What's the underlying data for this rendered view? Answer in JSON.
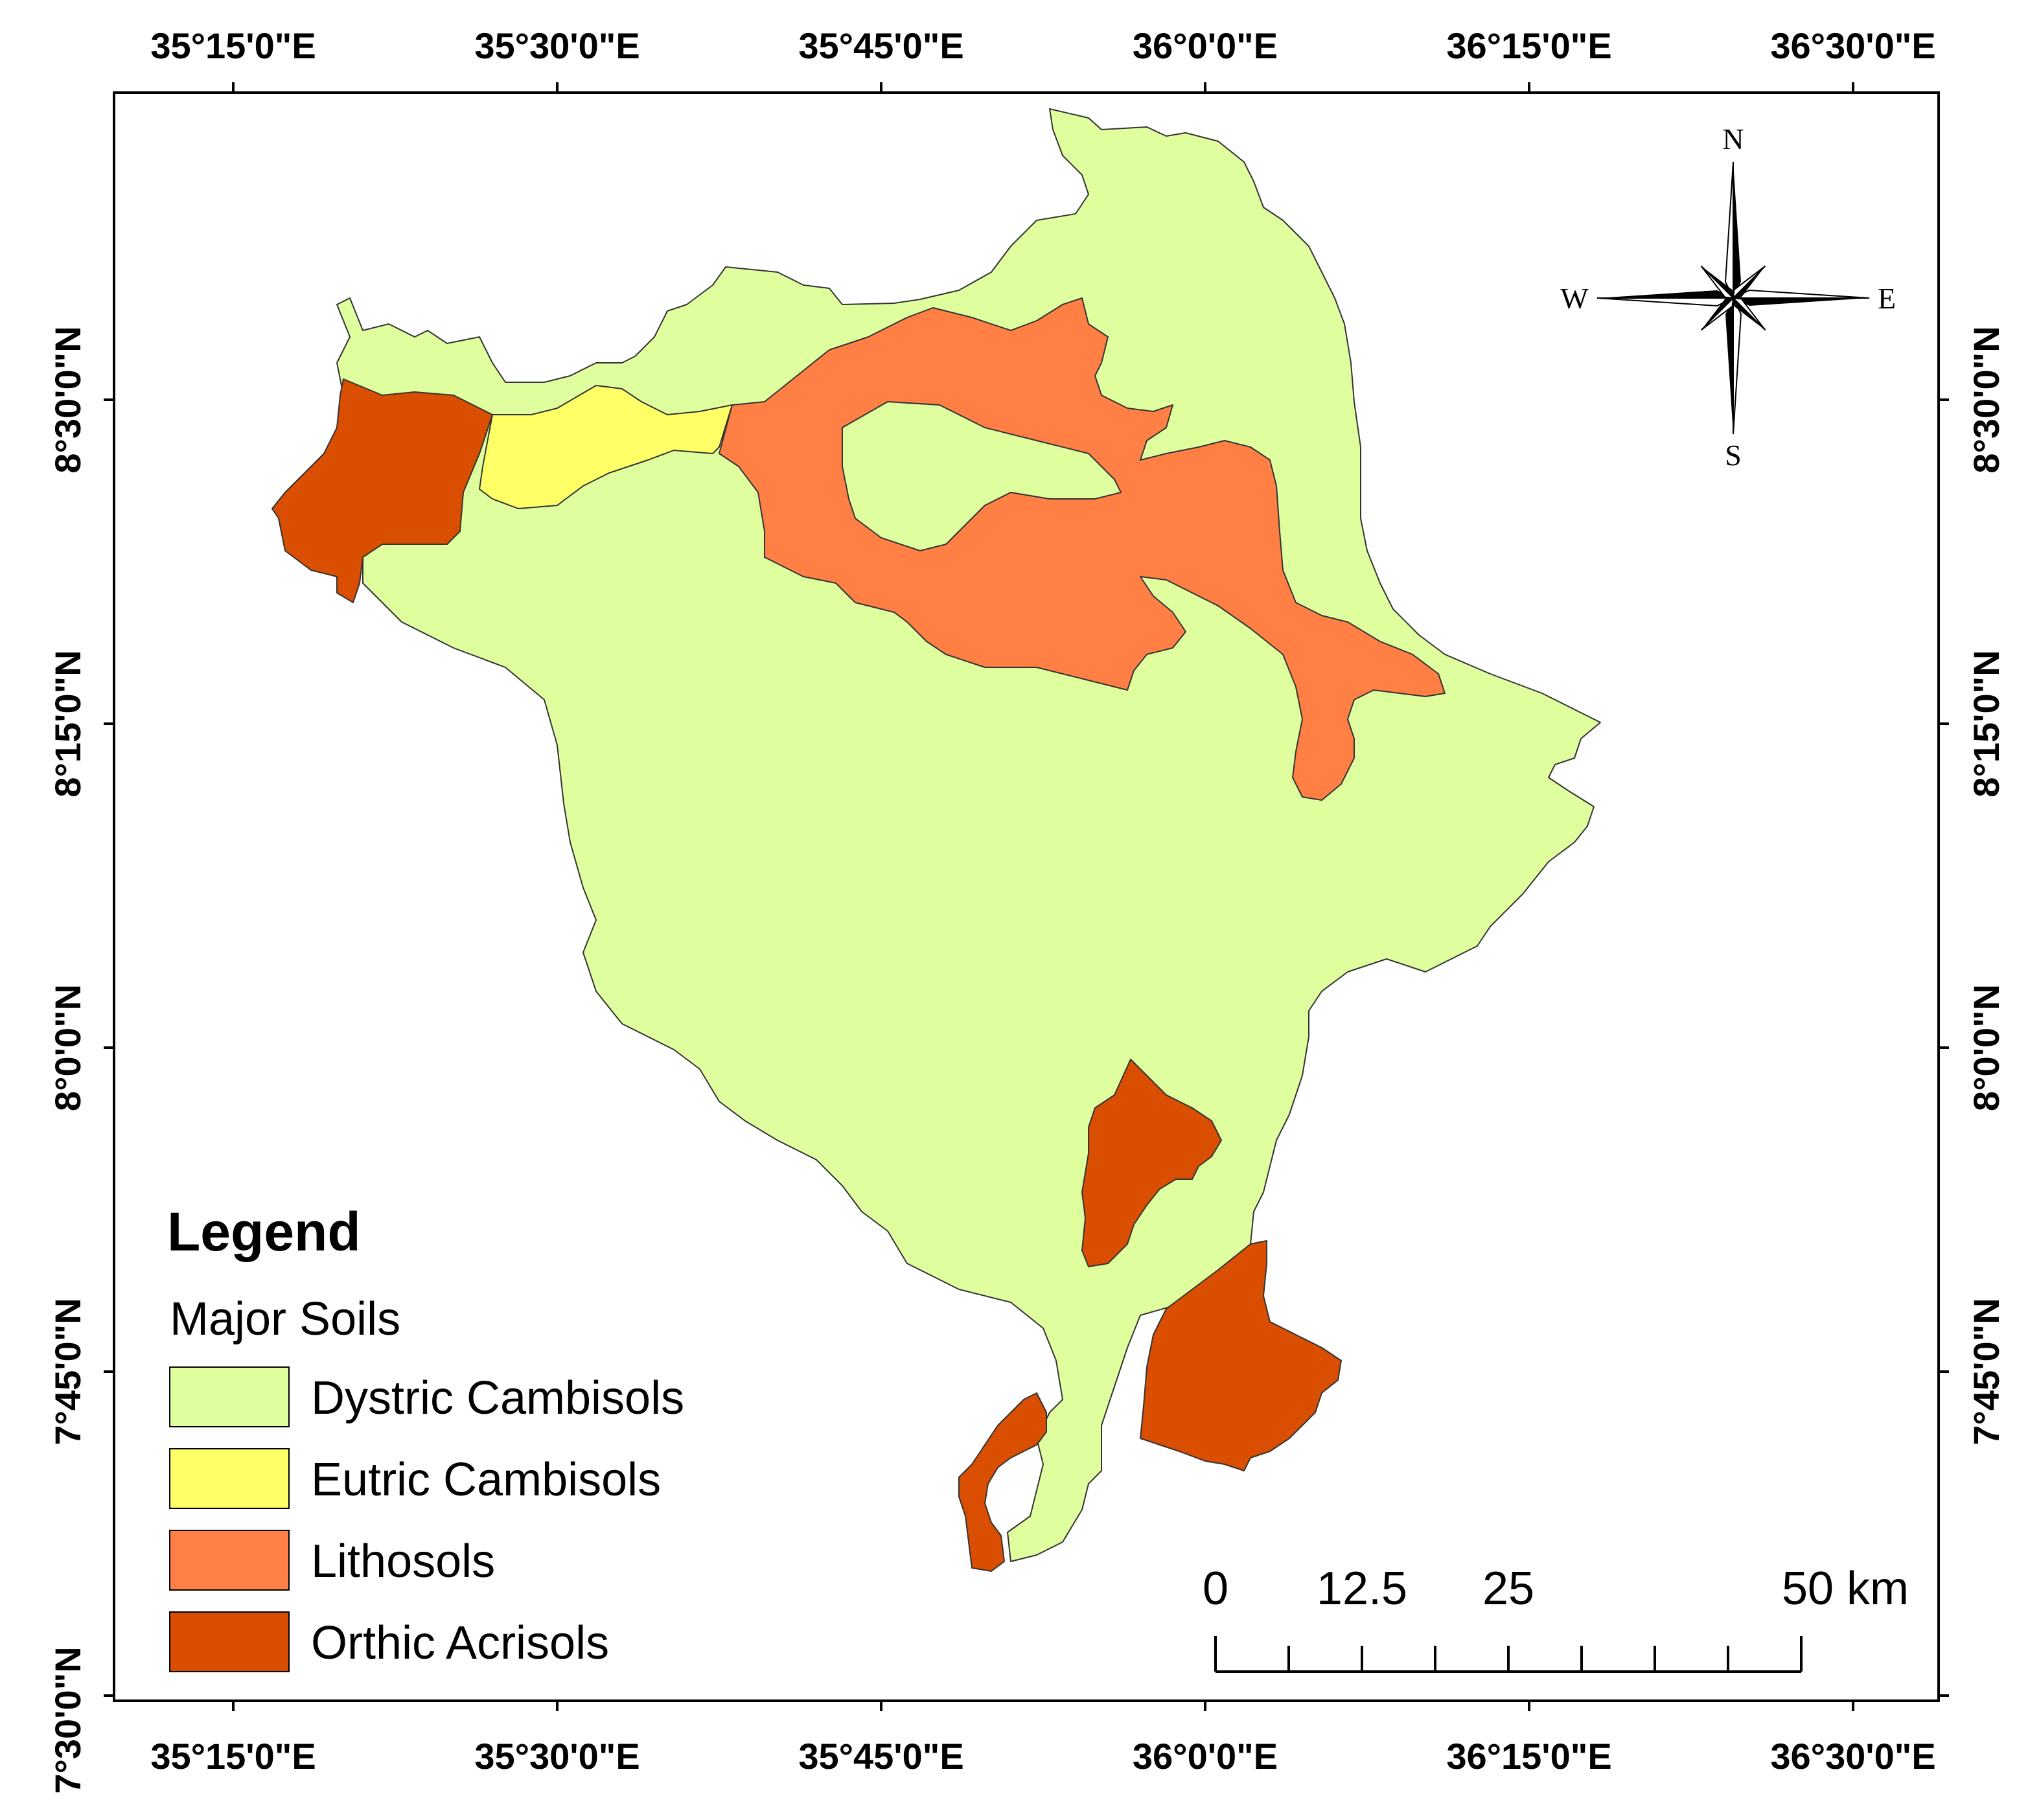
{
  "axes": {
    "longitude_labels": [
      "35°15'0\"E",
      "35°30'0\"E",
      "35°45'0\"E",
      "36°0'0\"E",
      "36°15'0\"E",
      "36°30'0\"E"
    ],
    "latitude_labels": [
      "8°30'0\"N",
      "8°15'0\"N",
      "8°0'0\"N",
      "7°45'0\"N",
      "7°30'0\"N"
    ]
  },
  "legend": {
    "title": "Legend",
    "subtitle": "Major Soils",
    "items": [
      {
        "label": "Dystric Cambisols",
        "color": "#dfff9f"
      },
      {
        "label": "Eutric Cambisols",
        "color": "#ffff66"
      },
      {
        "label": "Lithosols",
        "color": "#ff7f45"
      },
      {
        "label": "Orthic Acrisols",
        "color": "#d94e00"
      }
    ]
  },
  "compass": {
    "n": "N",
    "s": "S",
    "e": "E",
    "w": "W"
  },
  "scale_bar": {
    "labels": [
      "0",
      "12.5",
      "25",
      "50 km"
    ]
  }
}
